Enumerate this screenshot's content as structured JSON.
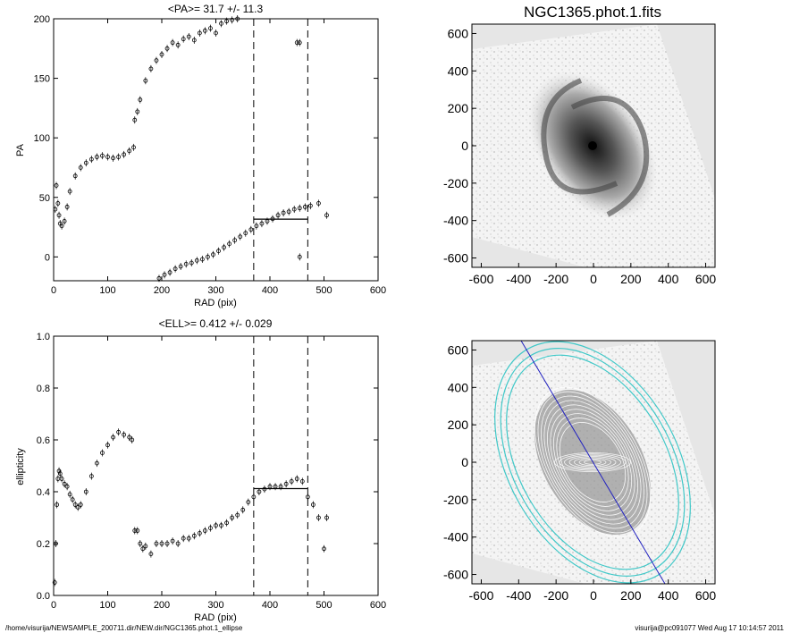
{
  "footer": {
    "path": "/home/visurija/NEWSAMPLE_200711.dir/NEW.dir/NGC1365.phot.1_ellipse",
    "stamp": "visurija@pc091077  Wed Aug 17 10:14:57 2011"
  },
  "chart_data": [
    {
      "id": "pa",
      "type": "scatter",
      "title": "<PA>=  31.7 +/-  11.3",
      "xlabel": "RAD (pix)",
      "ylabel": "PA",
      "xlim": [
        0,
        600
      ],
      "ylim": [
        -20,
        200
      ],
      "xticks": [
        "0",
        "100",
        "200",
        "300",
        "400",
        "500",
        "600"
      ],
      "yticks": [
        "0",
        "50",
        "100",
        "150",
        "200"
      ],
      "vlines": [
        370,
        470
      ],
      "mean_line": {
        "x": [
          370,
          470
        ],
        "y": 31.7
      },
      "series": [
        {
          "name": "inner",
          "x": [
            3,
            5,
            8,
            10,
            12,
            15,
            20,
            25,
            30,
            40,
            50,
            60,
            70,
            80,
            90,
            100,
            110,
            120,
            130,
            140,
            148
          ],
          "y": [
            40,
            60,
            45,
            35,
            28,
            26,
            30,
            42,
            55,
            68,
            75,
            79,
            82,
            84,
            85,
            84,
            83,
            84,
            86,
            89,
            92
          ]
        },
        {
          "name": "outer-upper",
          "x": [
            150,
            155,
            160,
            170,
            180,
            190,
            200,
            210,
            220,
            230,
            240,
            250,
            260,
            270,
            280,
            290,
            300,
            310,
            320,
            330,
            340,
            350,
            360
          ],
          "y": [
            115,
            122,
            132,
            148,
            158,
            165,
            170,
            175,
            180,
            178,
            183,
            185,
            182,
            188,
            190,
            192,
            188,
            196,
            198,
            199,
            200,
            201,
            203
          ]
        },
        {
          "name": "outer-lower",
          "x": [
            195,
            205,
            215,
            225,
            235,
            245,
            255,
            265,
            275,
            285,
            295,
            305,
            315,
            325,
            335,
            345,
            355,
            365,
            375,
            385,
            395,
            405,
            415,
            425,
            435,
            445,
            455,
            465,
            475,
            490,
            505
          ],
          "y": [
            -18,
            -15,
            -13,
            -10,
            -8,
            -6,
            -5,
            -3,
            -2,
            0,
            2,
            5,
            8,
            11,
            14,
            17,
            20,
            23,
            26,
            28,
            30,
            32,
            35,
            37,
            38,
            40,
            41,
            42,
            43,
            45,
            35
          ]
        },
        {
          "name": "outliers",
          "x": [
            450,
            455
          ],
          "y": 180
        },
        {
          "name": "outliers-low",
          "x": [
            455
          ],
          "y": [
            0
          ]
        }
      ]
    },
    {
      "id": "ell",
      "type": "scatter",
      "title": "<ELL>= 0.412 +/-  0.029",
      "xlabel": "RAD (pix)",
      "ylabel": "ellipticity",
      "xlim": [
        0,
        600
      ],
      "ylim": [
        0,
        1
      ],
      "xticks": [
        "0",
        "100",
        "200",
        "300",
        "400",
        "500",
        "600"
      ],
      "yticks": [
        "0.0",
        "0.2",
        "0.4",
        "0.6",
        "0.8",
        "1.0"
      ],
      "vlines": [
        370,
        470
      ],
      "mean_line": {
        "x": [
          370,
          470
        ],
        "y": 0.412
      },
      "series": [
        {
          "name": "inner",
          "x": [
            2,
            4,
            6,
            8,
            10,
            12,
            15,
            20,
            25,
            30,
            35,
            40,
            45,
            50,
            60,
            70,
            80,
            90,
            100,
            110,
            120,
            130,
            140,
            145
          ],
          "y": [
            0.05,
            0.2,
            0.35,
            0.45,
            0.48,
            0.47,
            0.45,
            0.43,
            0.42,
            0.39,
            0.37,
            0.35,
            0.34,
            0.35,
            0.4,
            0.46,
            0.51,
            0.55,
            0.58,
            0.61,
            0.63,
            0.62,
            0.61,
            0.6
          ]
        },
        {
          "name": "outer",
          "x": [
            150,
            155,
            160,
            165,
            170,
            180,
            190,
            200,
            210,
            220,
            230,
            240,
            250,
            260,
            270,
            280,
            290,
            300,
            310,
            320,
            330,
            340,
            350,
            360,
            370,
            380,
            390,
            400,
            410,
            420,
            430,
            440,
            450,
            460,
            470,
            480,
            490,
            505
          ],
          "y": [
            0.25,
            0.25,
            0.2,
            0.18,
            0.19,
            0.16,
            0.2,
            0.2,
            0.2,
            0.21,
            0.2,
            0.22,
            0.22,
            0.23,
            0.24,
            0.25,
            0.26,
            0.27,
            0.27,
            0.28,
            0.3,
            0.31,
            0.33,
            0.36,
            0.38,
            0.4,
            0.41,
            0.42,
            0.42,
            0.42,
            0.43,
            0.44,
            0.45,
            0.44,
            0.38,
            0.35,
            0.3,
            0.3
          ]
        },
        {
          "name": "outliers",
          "x": [
            500
          ],
          "y": [
            0.18
          ]
        }
      ]
    },
    {
      "id": "img-top",
      "type": "heatmap",
      "title": "NGC1365.phot.1.fits",
      "xlim": [
        -650,
        650
      ],
      "ylim": [
        -650,
        650
      ],
      "xticks": [
        "-600",
        "-400",
        "-200",
        "0",
        "200",
        "400",
        "600"
      ],
      "yticks": [
        "600",
        "400",
        "200",
        "0",
        "-200",
        "-400",
        "-600"
      ]
    },
    {
      "id": "img-bottom",
      "type": "heatmap",
      "title": "",
      "xlim": [
        -650,
        650
      ],
      "ylim": [
        -650,
        650
      ],
      "xticks": [
        "-600",
        "-400",
        "-200",
        "0",
        "200",
        "400",
        "600"
      ],
      "yticks": [
        "600",
        "400",
        "200",
        "0",
        "-200",
        "-400",
        "-600"
      ],
      "pa_line": {
        "from": [
          -400,
          650
        ],
        "to": [
          400,
          -650
        ]
      }
    }
  ],
  "colors": {
    "axis": "#000000",
    "ellipse": "#40c8c8",
    "pa_line": "#2020c0",
    "sky": "#e6e6e6",
    "galaxy": "#666666"
  }
}
